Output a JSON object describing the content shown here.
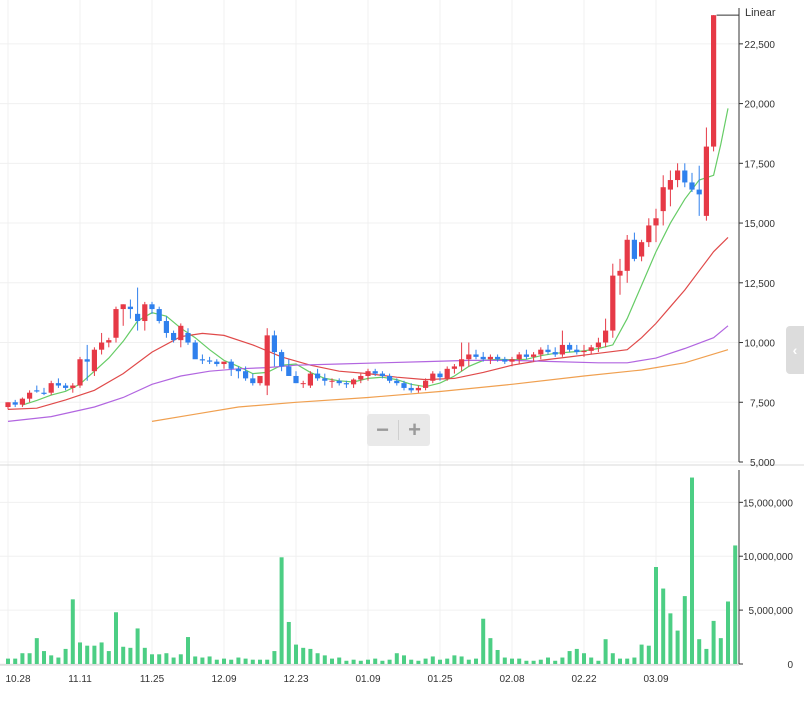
{
  "chart_data": [
    {
      "type": "candlestick",
      "title": "",
      "scale_label": "Linear",
      "y_ticks": [
        5000,
        7500,
        10000,
        12500,
        15000,
        17500,
        20000,
        22500
      ],
      "y_tick_labels": [
        "5,000",
        "7,500",
        "10,000",
        "12,500",
        "15,000",
        "17,500",
        "20,000",
        "22,500"
      ],
      "ylim": [
        5000,
        24000
      ],
      "x_tick_labels": [
        {
          "label": "10.28",
          "index": 0
        },
        {
          "label": "11.11",
          "index": 10
        },
        {
          "label": "11.25",
          "index": 20
        },
        {
          "label": "12.09",
          "index": 30
        },
        {
          "label": "12.23",
          "index": 40
        },
        {
          "label": "01.09",
          "index": 50
        },
        {
          "label": "01.25",
          "index": 60
        },
        {
          "label": "02.08",
          "index": 70
        },
        {
          "label": "02.22",
          "index": 80
        },
        {
          "label": "03.09",
          "index": 90
        }
      ],
      "candles": [
        [
          7300,
          7500,
          7200,
          7500
        ],
        [
          7500,
          7600,
          7300,
          7400
        ],
        [
          7400,
          7700,
          7300,
          7650
        ],
        [
          7650,
          8000,
          7500,
          7900
        ],
        [
          8000,
          8200,
          7900,
          7950
        ],
        [
          7900,
          8100,
          7800,
          7850
        ],
        [
          7900,
          8400,
          7800,
          8300
        ],
        [
          8300,
          8500,
          8100,
          8200
        ],
        [
          8200,
          8300,
          8000,
          8100
        ],
        [
          8100,
          8300,
          7900,
          8200
        ],
        [
          8200,
          9400,
          8100,
          9300
        ],
        [
          9300,
          9900,
          8400,
          9200
        ],
        [
          8800,
          9800,
          8600,
          9700
        ],
        [
          9700,
          10400,
          9500,
          10000
        ],
        [
          10000,
          10200,
          9800,
          10100
        ],
        [
          10200,
          11500,
          10000,
          11400
        ],
        [
          11400,
          11600,
          10700,
          11600
        ],
        [
          11500,
          11800,
          11000,
          11400
        ],
        [
          11200,
          12300,
          10500,
          10900
        ],
        [
          10900,
          11700,
          10500,
          11600
        ],
        [
          11600,
          11700,
          11200,
          11400
        ],
        [
          11400,
          11500,
          10800,
          10900
        ],
        [
          10900,
          11100,
          10200,
          10400
        ],
        [
          10400,
          10500,
          10000,
          10100
        ],
        [
          10100,
          10800,
          9800,
          10700
        ],
        [
          10400,
          10600,
          9900,
          10000
        ],
        [
          10000,
          10100,
          9400,
          9300
        ],
        [
          9300,
          9500,
          9100,
          9250
        ],
        [
          9250,
          9400,
          9100,
          9200
        ],
        [
          9200,
          9300,
          9000,
          9100
        ],
        [
          9100,
          9200,
          8900,
          9200
        ],
        [
          9200,
          9300,
          8600,
          8900
        ],
        [
          8900,
          9000,
          8500,
          8800
        ],
        [
          8800,
          9000,
          8400,
          8500
        ],
        [
          8500,
          8700,
          8200,
          8300
        ],
        [
          8300,
          8600,
          8200,
          8600
        ],
        [
          8200,
          10600,
          7800,
          10300
        ],
        [
          10300,
          10500,
          9000,
          9600
        ],
        [
          9600,
          9700,
          8800,
          9000
        ],
        [
          9000,
          9300,
          8600,
          8600
        ],
        [
          8600,
          8800,
          8300,
          8300
        ],
        [
          8300,
          8400,
          8100,
          8300
        ],
        [
          8200,
          8800,
          8100,
          8700
        ],
        [
          8700,
          8900,
          8400,
          8500
        ],
        [
          8500,
          8700,
          8200,
          8400
        ],
        [
          8400,
          8500,
          8100,
          8400
        ],
        [
          8400,
          8500,
          8200,
          8300
        ],
        [
          8300,
          8400,
          8100,
          8250
        ],
        [
          8250,
          8500,
          8100,
          8450
        ],
        [
          8450,
          8700,
          8300,
          8600
        ],
        [
          8600,
          8900,
          8400,
          8800
        ],
        [
          8800,
          8900,
          8600,
          8700
        ],
        [
          8700,
          8800,
          8500,
          8600
        ],
        [
          8600,
          8700,
          8300,
          8400
        ],
        [
          8400,
          8500,
          8200,
          8300
        ],
        [
          8300,
          8400,
          8000,
          8100
        ],
        [
          8100,
          8300,
          7900,
          8000
        ],
        [
          8000,
          8200,
          7900,
          8100
        ],
        [
          8100,
          8500,
          8000,
          8400
        ],
        [
          8400,
          8800,
          8300,
          8700
        ],
        [
          8700,
          8800,
          8400,
          8550
        ],
        [
          8500,
          9000,
          8400,
          8900
        ],
        [
          8900,
          9100,
          8700,
          9000
        ],
        [
          9000,
          10000,
          8800,
          9300
        ],
        [
          9300,
          10000,
          9000,
          9500
        ],
        [
          9500,
          9700,
          9300,
          9400
        ],
        [
          9400,
          9600,
          9200,
          9300
        ],
        [
          9300,
          9500,
          9100,
          9400
        ],
        [
          9400,
          9500,
          9200,
          9300
        ],
        [
          9300,
          9400,
          9100,
          9200
        ],
        [
          9200,
          9400,
          9000,
          9300
        ],
        [
          9300,
          9600,
          9100,
          9500
        ],
        [
          9500,
          9700,
          9300,
          9400
        ],
        [
          9400,
          9600,
          9200,
          9500
        ],
        [
          9500,
          9800,
          9300,
          9700
        ],
        [
          9700,
          9900,
          9500,
          9600
        ],
        [
          9600,
          9800,
          9400,
          9500
        ],
        [
          9500,
          10500,
          9400,
          9900
        ],
        [
          9900,
          10000,
          9600,
          9700
        ],
        [
          9700,
          9900,
          9500,
          9600
        ],
        [
          9600,
          9900,
          9400,
          9650
        ],
        [
          9650,
          9900,
          9500,
          9800
        ],
        [
          9800,
          10200,
          9600,
          10000
        ],
        [
          10000,
          11000,
          9800,
          10500
        ],
        [
          10500,
          13300,
          10200,
          12800
        ],
        [
          12800,
          13500,
          12000,
          13000
        ],
        [
          13000,
          14500,
          12500,
          14300
        ],
        [
          14300,
          14600,
          13400,
          13500
        ],
        [
          13600,
          14300,
          13400,
          14200
        ],
        [
          14200,
          15200,
          14000,
          14900
        ],
        [
          14900,
          15600,
          14200,
          15200
        ],
        [
          15500,
          17000,
          14900,
          16500
        ],
        [
          16400,
          17200,
          15700,
          16800
        ],
        [
          16800,
          17500,
          16500,
          17200
        ],
        [
          17200,
          17500,
          16500,
          16700
        ],
        [
          16700,
          17100,
          16300,
          16400
        ],
        [
          16400,
          17400,
          15300,
          16200
        ],
        [
          15300,
          19000,
          15100,
          18200
        ],
        [
          18200,
          23700,
          18000,
          23700
        ]
      ],
      "volume": {
        "y_ticks": [
          0,
          5000000,
          10000000,
          15000000
        ],
        "y_tick_labels": [
          "0",
          "5,000,000",
          "10,000,000",
          "15,000,000"
        ],
        "ylim": [
          0,
          18000000
        ],
        "values": [
          500000,
          500000,
          1000000,
          1000000,
          2400000,
          1200000,
          800000,
          600000,
          1400000,
          6000000,
          2000000,
          1700000,
          1700000,
          2000000,
          1200000,
          4800000,
          1600000,
          1500000,
          3300000,
          1500000,
          900000,
          900000,
          1000000,
          600000,
          900000,
          2500000,
          700000,
          600000,
          700000,
          400000,
          500000,
          400000,
          600000,
          500000,
          400000,
          400000,
          400000,
          1200000,
          9900000,
          3900000,
          1800000,
          1500000,
          1400000,
          1000000,
          800000,
          500000,
          600000,
          300000,
          400000,
          300000,
          400000,
          500000,
          300000,
          400000,
          1000000,
          800000,
          400000,
          300000,
          500000,
          700000,
          400000,
          500000,
          800000,
          700000,
          400000,
          500000,
          4200000,
          2400000,
          1300000,
          600000,
          500000,
          500000,
          300000,
          300000,
          400000,
          600000,
          300000,
          600000,
          1200000,
          1400000,
          1000000,
          600000,
          300000,
          2300000,
          1000000,
          500000,
          500000,
          600000,
          1800000,
          1700000,
          9000000,
          7000000,
          4700000,
          3100000,
          6300000,
          17300000,
          2300000,
          1400000,
          4000000,
          2400000
        ],
        "extra_values": [
          5800000,
          11000000
        ]
      },
      "moving_averages": [
        {
          "color": "#66cc66",
          "points": [
            [
              2,
              7380
            ],
            [
              4,
              7580
            ],
            [
              6,
              7800
            ],
            [
              8,
              7960
            ],
            [
              10,
              8260
            ],
            [
              12,
              8800
            ],
            [
              14,
              9350
            ],
            [
              16,
              10050
            ],
            [
              18,
              10900
            ],
            [
              20,
              11250
            ],
            [
              22,
              11100
            ],
            [
              24,
              10600
            ],
            [
              26,
              10200
            ],
            [
              28,
              9700
            ],
            [
              30,
              9250
            ],
            [
              32,
              9000
            ],
            [
              34,
              8700
            ],
            [
              36,
              8750
            ],
            [
              38,
              9050
            ],
            [
              40,
              9100
            ],
            [
              42,
              8750
            ],
            [
              44,
              8500
            ],
            [
              46,
              8400
            ],
            [
              48,
              8350
            ],
            [
              50,
              8500
            ],
            [
              52,
              8550
            ],
            [
              54,
              8450
            ],
            [
              56,
              8250
            ],
            [
              58,
              8150
            ],
            [
              60,
              8300
            ],
            [
              62,
              8600
            ],
            [
              64,
              9000
            ],
            [
              66,
              9250
            ],
            [
              68,
              9300
            ],
            [
              70,
              9280
            ],
            [
              72,
              9300
            ],
            [
              74,
              9450
            ],
            [
              76,
              9550
            ],
            [
              78,
              9600
            ],
            [
              80,
              9650
            ],
            [
              82,
              9750
            ],
            [
              84,
              9900
            ],
            [
              86,
              11000
            ],
            [
              88,
              12400
            ],
            [
              90,
              13800
            ],
            [
              92,
              15000
            ],
            [
              94,
              16000
            ],
            [
              96,
              16800
            ],
            [
              98,
              17000
            ],
            [
              99,
              18300
            ],
            [
              100,
              19800
            ]
          ]
        },
        {
          "color": "#e04a4a",
          "points": [
            [
              0,
              7200
            ],
            [
              4,
              7250
            ],
            [
              8,
              7600
            ],
            [
              12,
              8000
            ],
            [
              16,
              8700
            ],
            [
              20,
              9600
            ],
            [
              24,
              10250
            ],
            [
              27,
              10380
            ],
            [
              30,
              10300
            ],
            [
              34,
              9900
            ],
            [
              38,
              9400
            ],
            [
              42,
              9050
            ],
            [
              46,
              8800
            ],
            [
              50,
              8700
            ],
            [
              54,
              8550
            ],
            [
              58,
              8450
            ],
            [
              62,
              8500
            ],
            [
              66,
              8750
            ],
            [
              70,
              9050
            ],
            [
              74,
              9250
            ],
            [
              78,
              9400
            ],
            [
              82,
              9550
            ],
            [
              86,
              9700
            ],
            [
              88,
              10200
            ],
            [
              90,
              10800
            ],
            [
              92,
              11500
            ],
            [
              94,
              12200
            ],
            [
              96,
              13000
            ],
            [
              98,
              13800
            ],
            [
              100,
              14400
            ]
          ]
        },
        {
          "color": "#b266e0",
          "points": [
            [
              0,
              6700
            ],
            [
              6,
              6900
            ],
            [
              12,
              7300
            ],
            [
              16,
              7700
            ],
            [
              20,
              8250
            ],
            [
              24,
              8600
            ],
            [
              28,
              8800
            ],
            [
              32,
              8900
            ],
            [
              36,
              8950
            ],
            [
              40,
              9050
            ],
            [
              46,
              9100
            ],
            [
              52,
              9150
            ],
            [
              58,
              9200
            ],
            [
              64,
              9250
            ],
            [
              70,
              9250
            ],
            [
              76,
              9200
            ],
            [
              82,
              9150
            ],
            [
              86,
              9150
            ],
            [
              90,
              9350
            ],
            [
              94,
              9750
            ],
            [
              98,
              10200
            ],
            [
              100,
              10700
            ]
          ]
        },
        {
          "color": "#f0a050",
          "points": [
            [
              20,
              6700
            ],
            [
              26,
              7000
            ],
            [
              32,
              7300
            ],
            [
              40,
              7500
            ],
            [
              50,
              7700
            ],
            [
              60,
              7950
            ],
            [
              70,
              8250
            ],
            [
              80,
              8600
            ],
            [
              88,
              8850
            ],
            [
              94,
              9150
            ],
            [
              100,
              9700
            ]
          ]
        }
      ]
    }
  ],
  "controls": {
    "zoom_out": "−",
    "zoom_in": "+",
    "side_tab": "‹"
  }
}
